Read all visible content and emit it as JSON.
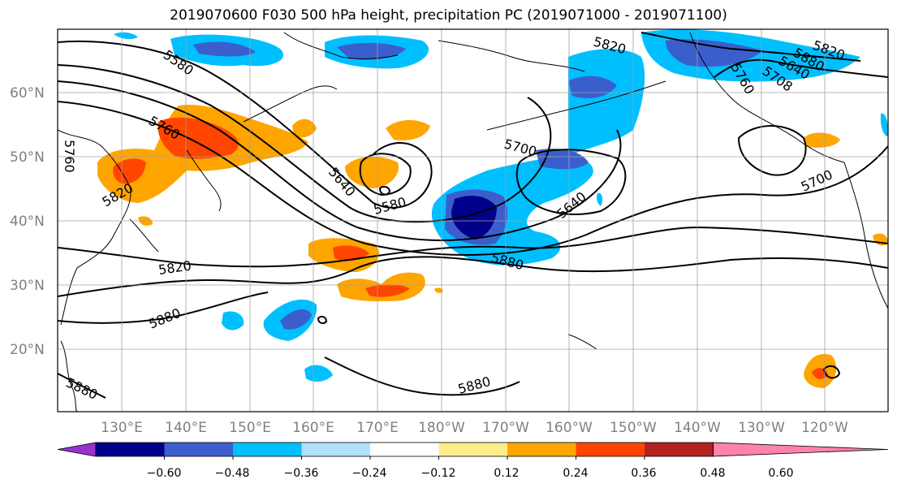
{
  "title": "2019070600 F030 500 hPa height, precipitation PC (2019071000 - 2019071100)",
  "map": {
    "lon_range": [
      120,
      250
    ],
    "lat_range": [
      10,
      70
    ],
    "lat_labels": [
      "60°N",
      "50°N",
      "40°N",
      "30°N",
      "20°N"
    ],
    "lon_labels": [
      "130°E",
      "140°E",
      "150°E",
      "160°E",
      "170°E",
      "180°W",
      "170°W",
      "160°W",
      "150°W",
      "140°W",
      "130°W",
      "120°W"
    ],
    "gridlines": true
  },
  "contour_labels": [
    "5580",
    "5580",
    "5640",
    "5640",
    "5700",
    "5700",
    "5760",
    "5760",
    "5820",
    "5820",
    "5820",
    "5880",
    "5880",
    "5880",
    "5880",
    "5820",
    "5880",
    "5640",
    "5708",
    "5760"
  ],
  "colorbar": {
    "colors": [
      "#9932cc",
      "#00008b",
      "#3a5fcd",
      "#00bfff",
      "#b0e2ff",
      "#ffffff",
      "#ffec8b",
      "#ffa500",
      "#ff4500",
      "#b22222",
      "#ff82ab"
    ],
    "tick_labels": [
      "−0.60",
      "−0.48",
      "−0.36",
      "−0.24",
      "−0.12",
      "0.12",
      "0.24",
      "0.36",
      "0.48",
      "0.60"
    ]
  }
}
